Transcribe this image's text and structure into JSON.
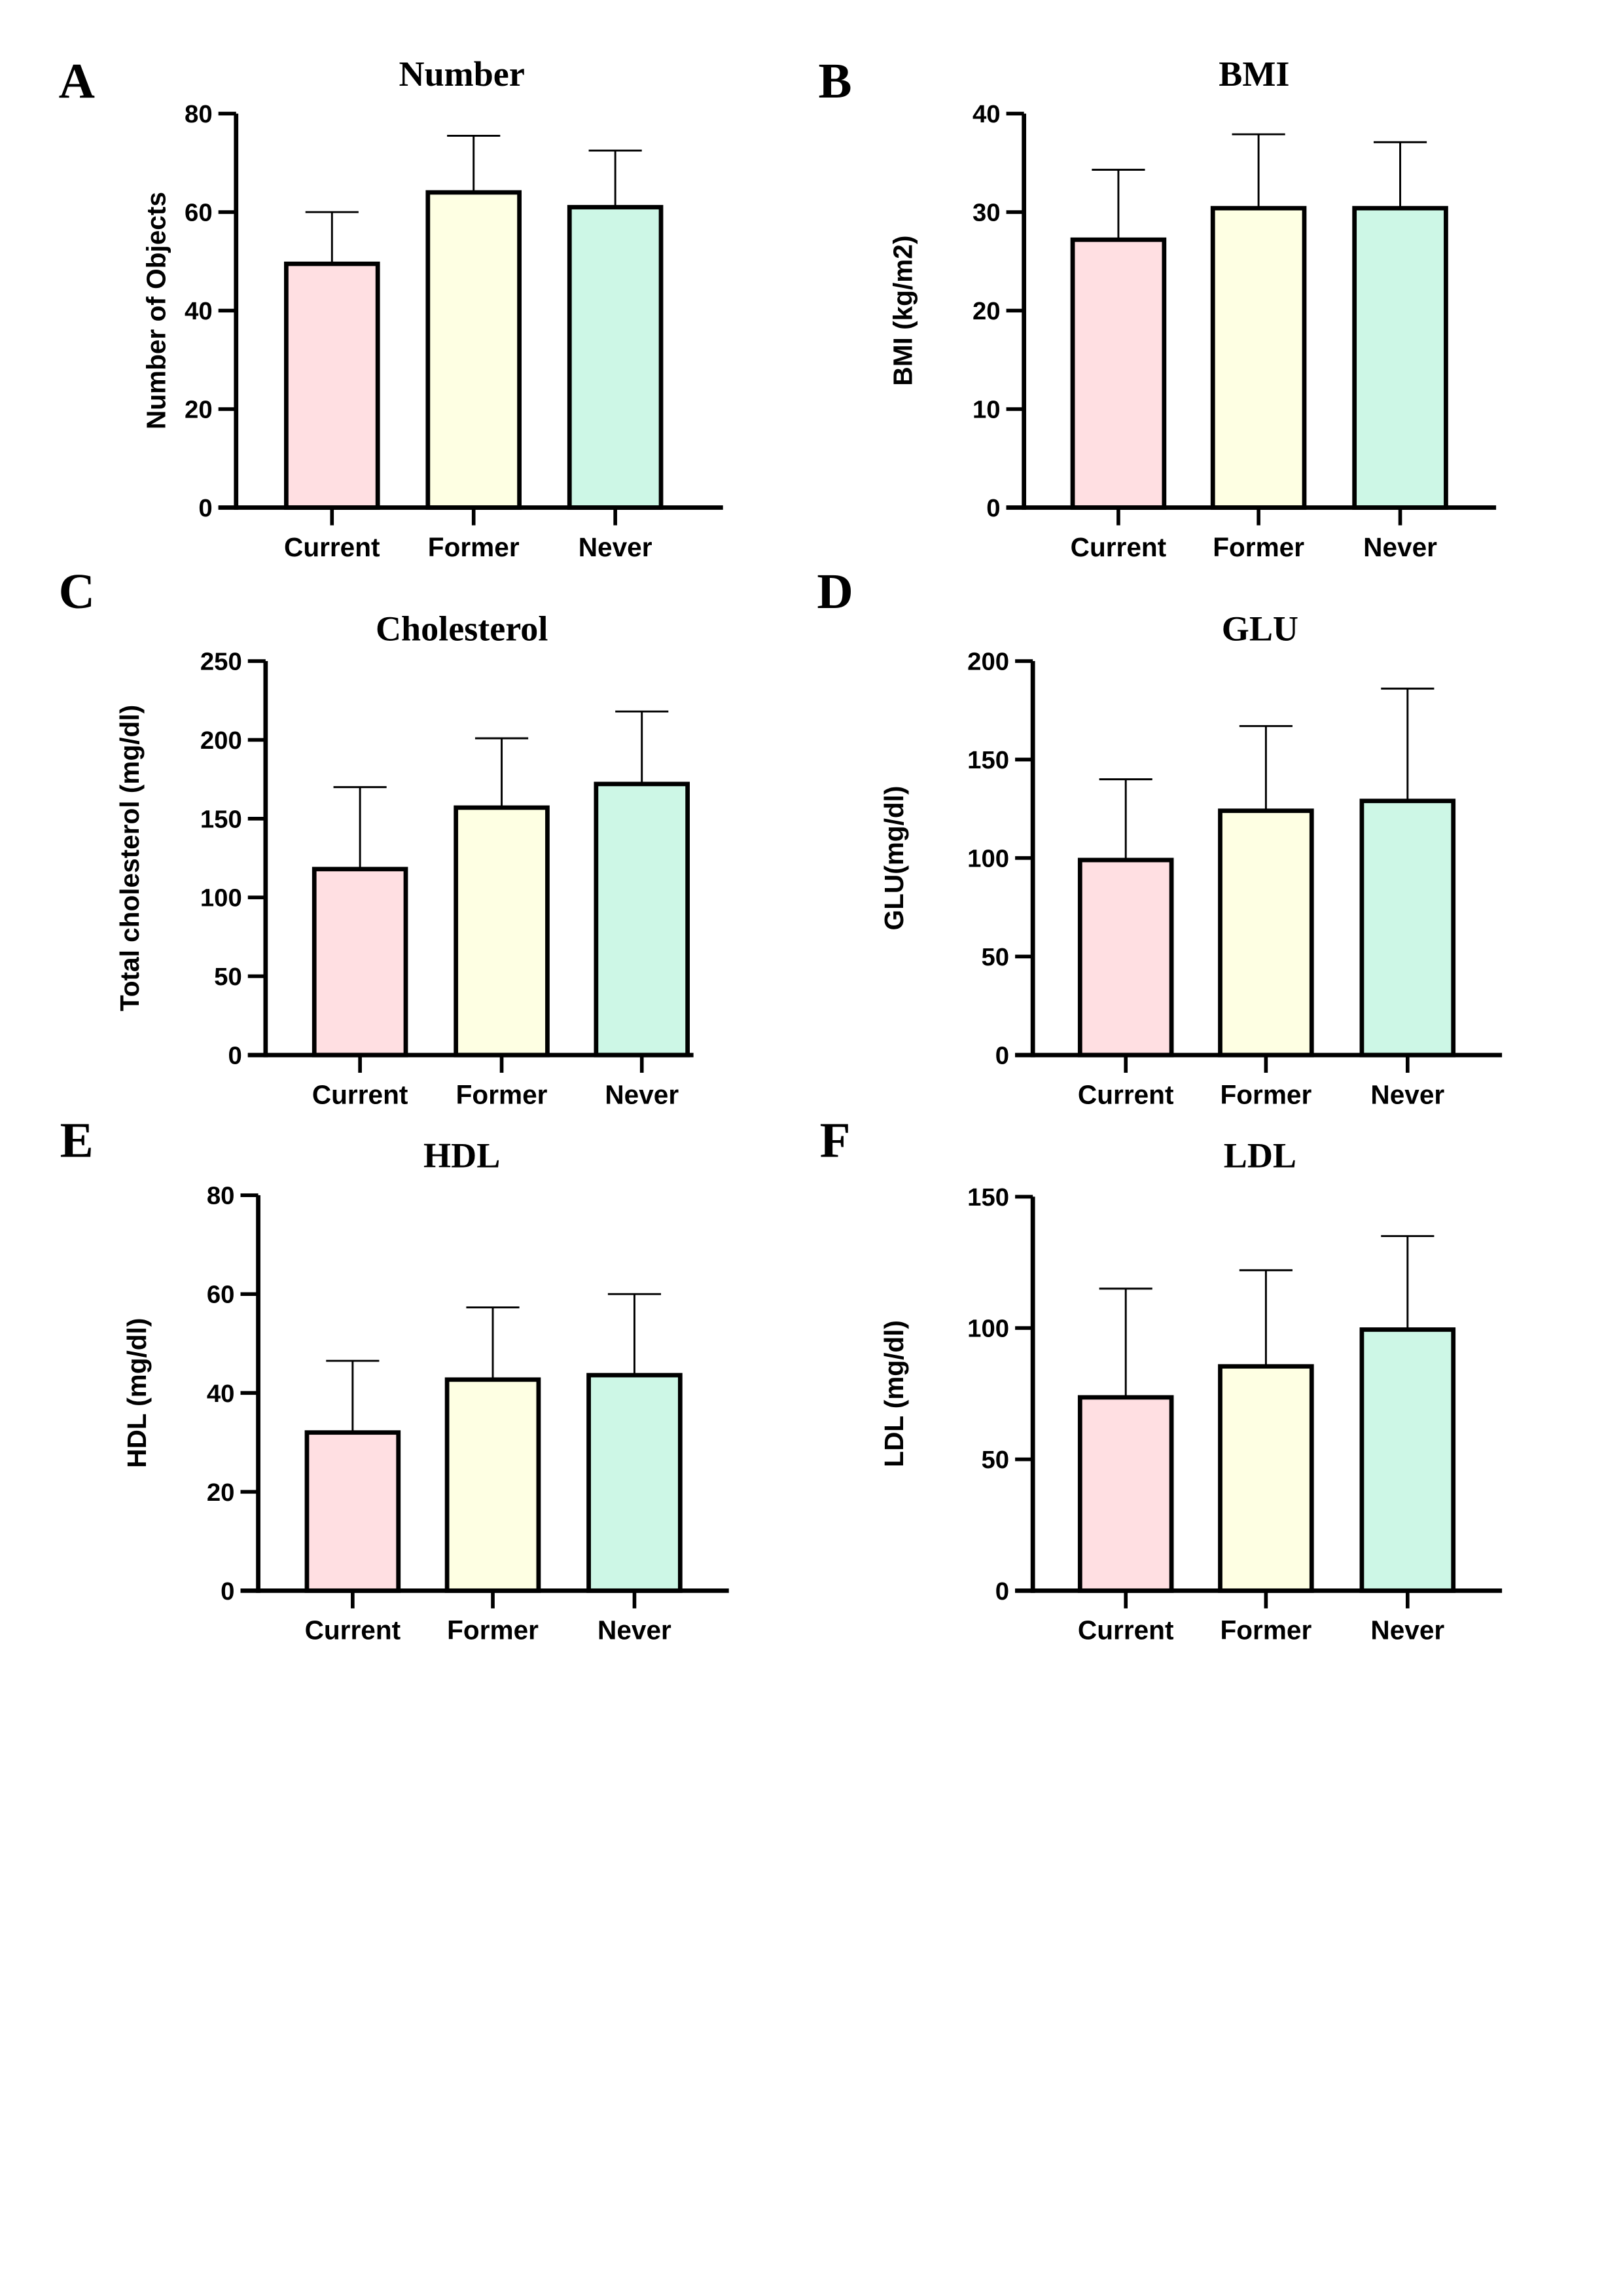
{
  "colors": {
    "Current": "#ffdfe2",
    "Former": "#feffe3",
    "Never": "#cdf7e6",
    "stroke": "#000000"
  },
  "chart_data": [
    {
      "panel": "A",
      "type": "bar",
      "title": "Number",
      "ylabel": "Number of Objects",
      "categories": [
        "Current",
        "Former",
        "Never"
      ],
      "values": [
        49.5,
        64,
        61
      ],
      "error_upper": [
        60,
        75.5,
        72.5
      ],
      "ylim": [
        0,
        80
      ],
      "yticks": [
        0,
        20,
        40,
        60,
        80
      ],
      "grid": false
    },
    {
      "panel": "B",
      "type": "bar",
      "title": "BMI",
      "ylabel": "BMI (kg/m2)",
      "categories": [
        "Current",
        "Former",
        "Never"
      ],
      "values": [
        27.2,
        30.4,
        30.4
      ],
      "error_upper": [
        34.3,
        37.9,
        37.1
      ],
      "ylim": [
        0,
        40
      ],
      "yticks": [
        0,
        10,
        20,
        30,
        40
      ],
      "grid": false
    },
    {
      "panel": "C",
      "type": "bar",
      "title": "Cholesterol",
      "ylabel": "Total cholesterol (mg/dl)",
      "categories": [
        "Current",
        "Former",
        "Never"
      ],
      "values": [
        118,
        157,
        172
      ],
      "error_upper": [
        170,
        201,
        218
      ],
      "ylim": [
        0,
        250
      ],
      "yticks": [
        0,
        50,
        100,
        150,
        200,
        250
      ],
      "grid": false
    },
    {
      "panel": "D",
      "type": "bar",
      "title": "GLU",
      "ylabel": "GLU(mg/dl)",
      "categories": [
        "Current",
        "Former",
        "Never"
      ],
      "values": [
        99,
        124,
        129
      ],
      "error_upper": [
        140,
        167,
        186
      ],
      "ylim": [
        0,
        200
      ],
      "yticks": [
        0,
        50,
        100,
        150,
        200
      ],
      "grid": false
    },
    {
      "panel": "E",
      "type": "bar",
      "title": "HDL",
      "ylabel": "HDL (mg/dl)",
      "categories": [
        "Current",
        "Former",
        "Never"
      ],
      "values": [
        32,
        42.7,
        43.6
      ],
      "error_upper": [
        46.5,
        57.3,
        60
      ],
      "ylim": [
        0,
        80
      ],
      "yticks": [
        0,
        20,
        40,
        60,
        80
      ],
      "grid": false
    },
    {
      "panel": "F",
      "type": "bar",
      "title": "LDL",
      "ylabel": "LDL (mg/dl)",
      "categories": [
        "Current",
        "Former",
        "Never"
      ],
      "values": [
        73.6,
        85.4,
        99.4
      ],
      "error_upper": [
        115,
        122,
        135
      ],
      "ylim": [
        0,
        150
      ],
      "yticks": [
        0,
        50,
        100,
        150
      ],
      "grid": false
    }
  ]
}
